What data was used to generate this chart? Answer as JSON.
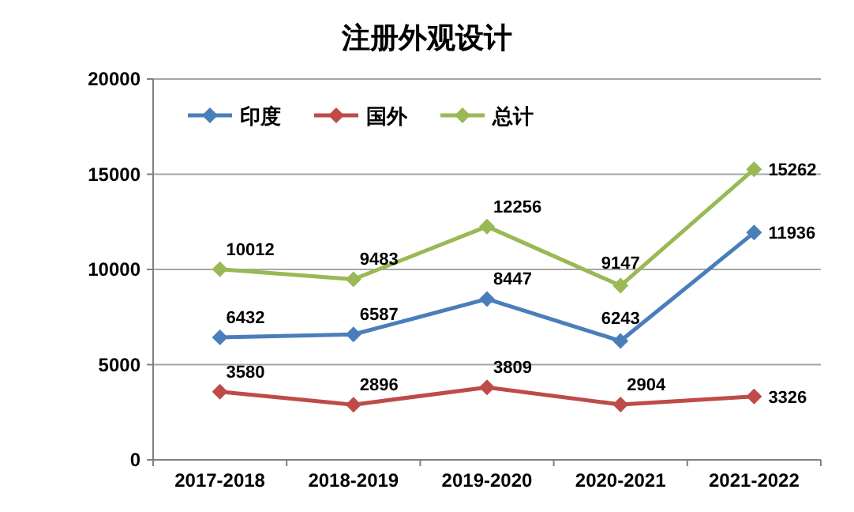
{
  "chart_data": {
    "type": "line",
    "title": "注册外观设计",
    "categories": [
      "2017-2018",
      "2018-2019",
      "2019-2020",
      "2020-2021",
      "2021-2022"
    ],
    "series": [
      {
        "name": "印度",
        "color": "#4a7ebb",
        "values": [
          6432,
          6587,
          8447,
          6243,
          11936
        ]
      },
      {
        "name": "国外",
        "color": "#be4b48",
        "values": [
          3580,
          2896,
          3809,
          2904,
          3326
        ]
      },
      {
        "name": "总计",
        "color": "#98b954",
        "values": [
          10012,
          9483,
          12256,
          9147,
          15262
        ]
      }
    ],
    "ylim": [
      0,
      20000
    ],
    "yticks": [
      0,
      5000,
      10000,
      15000,
      20000
    ],
    "grid": "y",
    "legend": "top left",
    "marker": "diamond",
    "line_style": "solid",
    "data_labels": true
  }
}
